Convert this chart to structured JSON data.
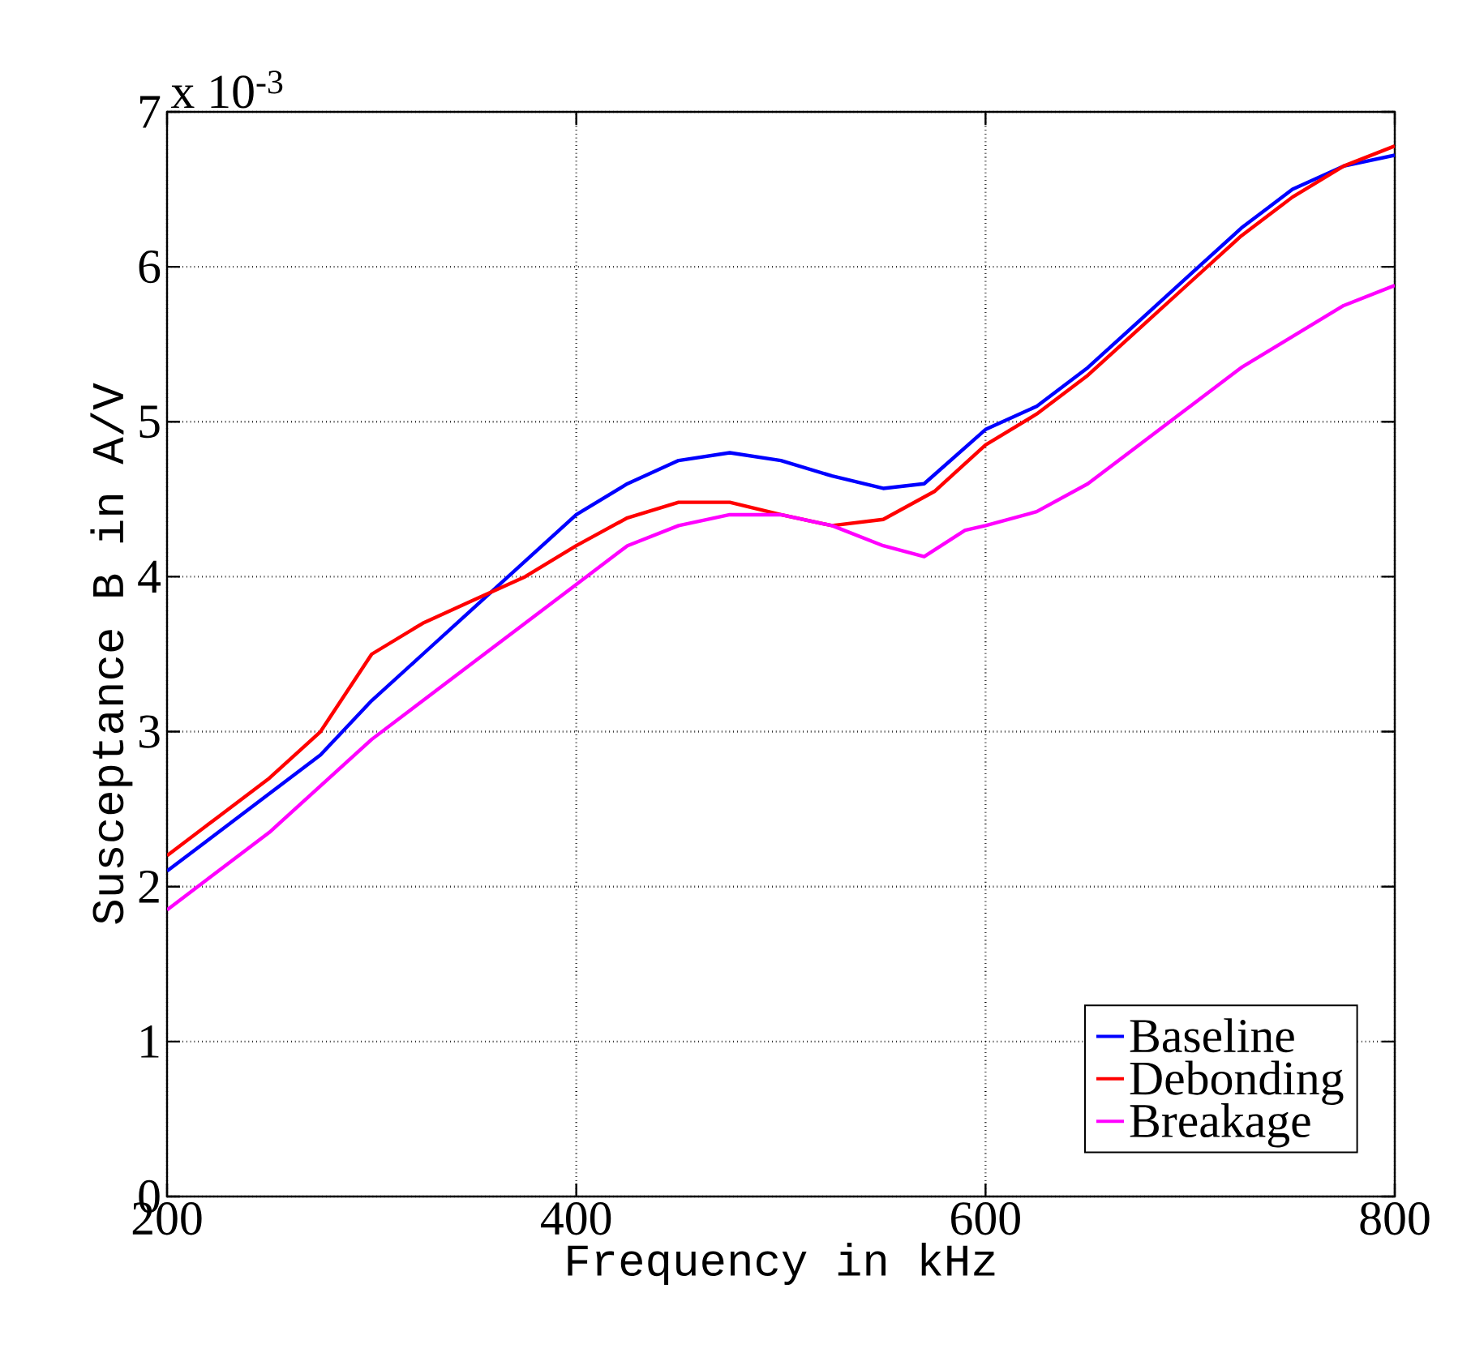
{
  "chart_data": {
    "type": "line",
    "xlabel": "Frequency in kHz",
    "ylabel": "Susceptance B in A/V",
    "annotations": [
      "x 10$^{-3}$"
    ],
    "xlim": [
      200,
      800
    ],
    "xticks": [
      200,
      400,
      600,
      800
    ],
    "ylim": [
      0,
      7
    ],
    "yticks": [
      0,
      1,
      2,
      3,
      4,
      5,
      6,
      7
    ],
    "grid": true,
    "legend": "bottom right",
    "line_style": "solid",
    "marker": "none",
    "series": [
      {
        "name": "Baseline",
        "color": "#0000ff",
        "x": [
          200,
          225,
          250,
          275,
          300,
          325,
          350,
          375,
          400,
          425,
          450,
          475,
          500,
          525,
          550,
          570,
          600,
          625,
          650,
          675,
          700,
          725,
          750,
          775,
          800
        ],
        "values": [
          2.1,
          2.35,
          2.6,
          2.85,
          3.2,
          3.5,
          3.8,
          4.1,
          4.4,
          4.6,
          4.75,
          4.8,
          4.75,
          4.65,
          4.57,
          4.6,
          4.95,
          5.1,
          5.35,
          5.65,
          5.95,
          6.25,
          6.5,
          6.65,
          6.72
        ]
      },
      {
        "name": "Debonding",
        "color": "#ff0000",
        "x": [
          200,
          225,
          250,
          275,
          300,
          325,
          350,
          375,
          400,
          425,
          450,
          475,
          500,
          525,
          550,
          575,
          600,
          625,
          650,
          675,
          700,
          725,
          750,
          775,
          800
        ],
        "values": [
          2.2,
          2.45,
          2.7,
          3.0,
          3.5,
          3.7,
          3.85,
          4.0,
          4.2,
          4.38,
          4.48,
          4.48,
          4.4,
          4.33,
          4.37,
          4.55,
          4.85,
          5.05,
          5.3,
          5.6,
          5.9,
          6.2,
          6.45,
          6.65,
          6.78
        ]
      },
      {
        "name": "Breakage",
        "color": "#ff00ff",
        "x": [
          200,
          250,
          300,
          350,
          400,
          425,
          450,
          475,
          500,
          525,
          550,
          570,
          590,
          600,
          625,
          650,
          675,
          700,
          725,
          750,
          775,
          800
        ],
        "values": [
          1.85,
          2.35,
          2.95,
          3.45,
          3.95,
          4.2,
          4.33,
          4.4,
          4.4,
          4.33,
          4.2,
          4.13,
          4.3,
          4.33,
          4.42,
          4.6,
          4.85,
          5.1,
          5.35,
          5.55,
          5.75,
          5.88
        ]
      }
    ]
  }
}
